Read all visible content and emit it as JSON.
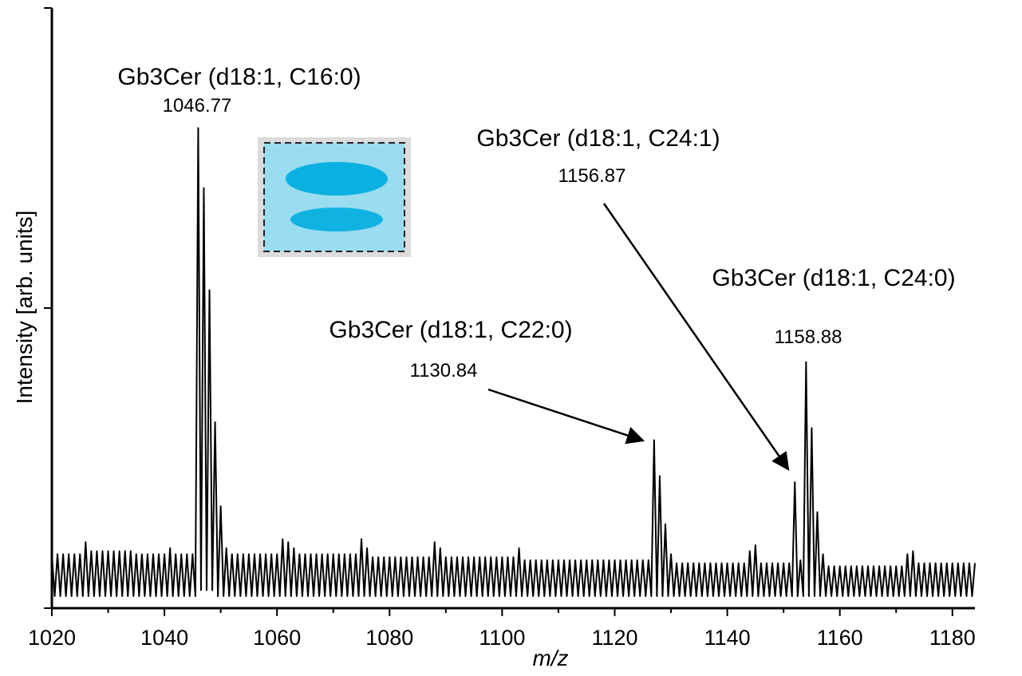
{
  "chart_data": {
    "type": "line",
    "xlabel": "m/z",
    "ylabel": "Intensity [arb. units]",
    "xlim": [
      1020,
      1184
    ],
    "xticks": [
      1020,
      1040,
      1060,
      1080,
      1100,
      1120,
      1140,
      1160,
      1180
    ],
    "ylim": [
      0,
      100
    ],
    "yticks": [
      0,
      50,
      100
    ],
    "color": "#000000",
    "annotations": [
      {
        "text": "Gb3Cer (d18:1, C16:0)",
        "mass": "1046.77"
      },
      {
        "text": "Gb3Cer (d18:1, C24:1)",
        "mass": "1156.87"
      },
      {
        "text": "Gb3Cer (d18:1, C22:0)",
        "mass": "1130.84"
      },
      {
        "text": "Gb3Cer (d18:1, C24:0)",
        "mass": "1158.88"
      }
    ],
    "x": [
      1020,
      1020.5,
      1021,
      1021.5,
      1022,
      1022.5,
      1023,
      1023.5,
      1024,
      1024.5,
      1025,
      1025.5,
      1026,
      1026.5,
      1027,
      1027.5,
      1028,
      1028.5,
      1029,
      1029.5,
      1030,
      1030.5,
      1031,
      1031.5,
      1032,
      1032.5,
      1033,
      1033.5,
      1034,
      1034.5,
      1035,
      1035.5,
      1036,
      1036.5,
      1037,
      1037.5,
      1038,
      1038.5,
      1039,
      1039.5,
      1040,
      1040.5,
      1041,
      1041.5,
      1042,
      1042.5,
      1043,
      1043.5,
      1044,
      1044.5,
      1045,
      1045.5,
      1046,
      1046.5,
      1047,
      1047.5,
      1048,
      1048.5,
      1049,
      1049.5,
      1050,
      1050.5,
      1051,
      1051.5,
      1052,
      1052.5,
      1053,
      1053.5,
      1054,
      1054.5,
      1055,
      1055.5,
      1056,
      1056.5,
      1057,
      1057.5,
      1058,
      1058.5,
      1059,
      1059.5,
      1060,
      1060.5,
      1061,
      1061.5,
      1062,
      1062.5,
      1063,
      1063.5,
      1064,
      1064.5,
      1065,
      1065.5,
      1066,
      1066.5,
      1067,
      1067.5,
      1068,
      1068.5,
      1069,
      1069.5,
      1070,
      1070.5,
      1071,
      1071.5,
      1072,
      1072.5,
      1073,
      1073.5,
      1074,
      1074.5,
      1075,
      1075.5,
      1076,
      1076.5,
      1077,
      1077.5,
      1078,
      1078.5,
      1079,
      1079.5,
      1080,
      1080.5,
      1081,
      1081.5,
      1082,
      1082.5,
      1083,
      1083.5,
      1084,
      1084.5,
      1085,
      1085.5,
      1086,
      1086.5,
      1087,
      1087.5,
      1088,
      1088.5,
      1089,
      1089.5,
      1090,
      1090.5,
      1091,
      1091.5,
      1092,
      1092.5,
      1093,
      1093.5,
      1094,
      1094.5,
      1095,
      1095.5,
      1096,
      1096.5,
      1097,
      1097.5,
      1098,
      1098.5,
      1099,
      1099.5,
      1100,
      1100.5,
      1101,
      1101.5,
      1102,
      1102.5,
      1103,
      1103.5,
      1104,
      1104.5,
      1105,
      1105.5,
      1106,
      1106.5,
      1107,
      1107.5,
      1108,
      1108.5,
      1109,
      1109.5,
      1110,
      1110.5,
      1111,
      1111.5,
      1112,
      1112.5,
      1113,
      1113.5,
      1114,
      1114.5,
      1115,
      1115.5,
      1116,
      1116.5,
      1117,
      1117.5,
      1118,
      1118.5,
      1119,
      1119.5,
      1120,
      1120.5,
      1121,
      1121.5,
      1122,
      1122.5,
      1123,
      1123.5,
      1124,
      1124.5,
      1125,
      1125.5,
      1126,
      1126.5,
      1127,
      1127.5,
      1128,
      1128.5,
      1129,
      1129.5,
      1130,
      1130.5,
      1131,
      1131.5,
      1132,
      1132.5,
      1133,
      1133.5,
      1134,
      1134.5,
      1135,
      1135.5,
      1136,
      1136.5,
      1137,
      1137.5,
      1138,
      1138.5,
      1139,
      1139.5,
      1140,
      1140.5,
      1141,
      1141.5,
      1142,
      1142.5,
      1143,
      1143.5,
      1144,
      1144.5,
      1145,
      1145.5,
      1146,
      1146.5,
      1147,
      1147.5,
      1148,
      1148.5,
      1149,
      1149.5,
      1150,
      1150.5,
      1151,
      1151.5,
      1152,
      1152.5,
      1153,
      1153.5,
      1154,
      1154.5,
      1155,
      1155.5,
      1156,
      1156.5,
      1157,
      1157.5,
      1158,
      1158.5,
      1159,
      1159.5,
      1160,
      1160.5,
      1161,
      1161.5,
      1162,
      1162.5,
      1163,
      1163.5,
      1164,
      1164.5,
      1165,
      1165.5,
      1166,
      1166.5,
      1167,
      1167.5,
      1168,
      1168.5,
      1169,
      1169.5,
      1170,
      1170.5,
      1171,
      1171.5,
      1172,
      1172.5,
      1173,
      1173.5,
      1174,
      1174.5,
      1175,
      1175.5,
      1176,
      1176.5,
      1177,
      1177.5,
      1178,
      1178.5,
      1179,
      1179.5,
      1180,
      1180.5,
      1181,
      1181.5,
      1182,
      1182.5,
      1183,
      1183.5,
      1184
    ],
    "values": [
      9,
      2,
      9,
      2,
      9,
      2,
      9,
      2,
      9,
      2,
      9,
      2,
      11,
      2,
      9.5,
      2,
      9.5,
      2,
      9.5,
      2,
      9.5,
      2,
      9.5,
      2,
      9.5,
      2,
      9.5,
      2,
      9.5,
      2,
      9,
      2,
      9,
      2,
      9,
      2,
      9,
      2,
      9,
      2,
      9,
      2,
      10,
      2,
      9,
      2,
      9,
      2,
      9,
      2,
      9,
      2,
      80,
      3,
      70,
      3,
      53,
      3,
      31,
      2,
      17,
      2,
      10,
      2,
      9,
      2,
      9,
      2,
      9,
      2,
      9,
      2,
      9,
      2,
      9,
      2,
      9,
      2,
      9,
      2,
      9,
      2,
      11.5,
      2,
      11,
      2,
      10,
      2,
      9,
      2,
      9,
      2,
      9,
      2,
      9,
      2,
      9,
      2,
      9,
      2,
      9,
      2,
      9,
      2,
      9,
      2,
      9,
      2,
      9,
      2,
      11.5,
      2,
      10,
      2,
      8.5,
      2,
      8.5,
      2,
      8.5,
      2,
      8.5,
      2,
      8.5,
      2,
      8.5,
      2,
      8.5,
      2,
      8.5,
      2,
      8.5,
      2,
      8.5,
      2,
      8.5,
      2,
      11,
      2,
      10,
      2,
      8.5,
      2,
      8.5,
      2,
      8.5,
      2,
      8.5,
      2,
      8.5,
      2,
      8.5,
      2,
      8.5,
      2,
      8.5,
      2,
      8.5,
      2,
      8.5,
      2,
      8.5,
      2,
      8.5,
      2,
      8.5,
      2,
      10,
      2,
      8,
      2,
      8,
      2,
      8,
      2,
      8,
      2,
      8,
      2,
      8,
      2,
      8,
      2,
      8,
      2,
      8,
      2,
      8,
      2,
      8,
      2,
      8,
      2,
      8,
      2,
      8,
      2,
      8,
      2,
      8,
      2,
      8,
      2,
      8,
      2,
      8,
      2,
      8,
      2,
      8,
      2,
      8,
      2,
      8,
      2,
      28,
      2,
      22,
      2,
      14,
      2,
      9,
      2,
      7.5,
      2,
      7.5,
      2,
      7.5,
      2,
      7.5,
      2,
      7.5,
      2,
      7.5,
      2,
      7.5,
      2,
      7.5,
      2,
      7.5,
      2,
      7.5,
      2,
      7.5,
      2,
      7.5,
      2,
      7.5,
      2,
      9.5,
      2,
      10.5,
      2,
      7.5,
      2,
      7.5,
      2,
      7.5,
      2,
      7.5,
      2,
      7.5,
      2,
      7.5,
      2,
      21,
      2,
      8,
      2,
      41,
      2,
      30,
      2,
      16,
      2,
      9,
      2,
      7,
      2,
      7,
      2,
      7,
      2,
      7,
      2,
      7,
      2,
      7,
      2,
      7,
      2,
      7,
      2,
      7,
      2,
      7,
      2,
      7,
      2,
      7,
      2,
      7,
      2,
      7,
      2,
      9,
      2,
      9.5,
      2,
      7.5,
      2,
      7.5,
      2,
      7.5,
      2,
      7.5,
      2,
      7.5,
      2,
      7.5,
      2,
      7.5,
      2,
      7.5,
      2,
      7.5,
      2,
      7.5,
      2,
      7.5
    ]
  }
}
